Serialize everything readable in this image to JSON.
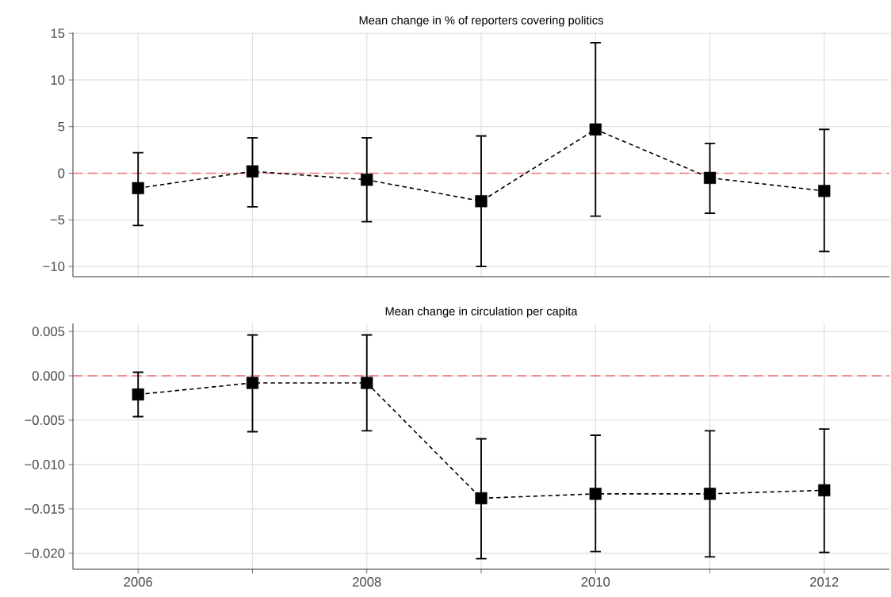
{
  "chart_data": [
    {
      "type": "line",
      "title": "Mean change in % of reporters covering politics",
      "x": [
        2006,
        2007,
        2008,
        2009,
        2010,
        2011,
        2012
      ],
      "values": [
        -1.6,
        0.2,
        -0.7,
        -3.0,
        4.7,
        -0.5,
        -1.9
      ],
      "errors": [
        [
          -5.6,
          2.2
        ],
        [
          -3.6,
          3.8
        ],
        [
          -5.2,
          3.8
        ],
        [
          -10.0,
          4.0
        ],
        [
          -4.6,
          14.0
        ],
        [
          -4.3,
          3.2
        ],
        [
          -8.4,
          4.7
        ]
      ],
      "color": "#000000",
      "marker": "square",
      "line_style": "dashed",
      "grid": true,
      "tick_labels": "y",
      "xlim": [
        2005.43,
        2012.57
      ],
      "xticks": [
        2006,
        {
          "value": 2007,
          "label": null
        },
        2008,
        {
          "value": 2009,
          "label": null
        },
        2010,
        {
          "value": 2011,
          "label": null
        },
        2012
      ],
      "ylim": [
        -11.1,
        15.1
      ],
      "yticks": [
        {
          "value": -10,
          "label": "−10"
        },
        {
          "value": -5,
          "label": "−5"
        },
        0,
        5,
        10,
        15
      ],
      "ref_lines": [
        {
          "axis": "y",
          "value": 0,
          "color": "#f07070",
          "line_style": "dashed"
        }
      ]
    },
    {
      "type": "line",
      "title": "Mean change in circulation per capita",
      "x": [
        2006,
        2007,
        2008,
        2009,
        2010,
        2011,
        2012
      ],
      "values": [
        -0.0021,
        -0.0008,
        -0.0008,
        -0.0138,
        -0.0133,
        -0.0133,
        -0.0129
      ],
      "errors": [
        [
          -0.0046,
          0.0004
        ],
        [
          -0.0063,
          0.0046
        ],
        [
          -0.0062,
          0.0046
        ],
        [
          -0.0206,
          -0.0071
        ],
        [
          -0.0198,
          -0.0067
        ],
        [
          -0.0204,
          -0.0062
        ],
        [
          -0.0199,
          -0.006
        ]
      ],
      "color": "#000000",
      "marker": "square",
      "line_style": "dashed",
      "grid": true,
      "xlim": [
        2005.43,
        2012.57
      ],
      "xticks": [
        2006,
        {
          "value": 2007,
          "label": null
        },
        2008,
        {
          "value": 2009,
          "label": null
        },
        2010,
        {
          "value": 2011,
          "label": null
        },
        2012
      ],
      "ylim": [
        -0.0218,
        0.0059
      ],
      "yticks": [
        {
          "value": -0.02,
          "label": "−0.020"
        },
        {
          "value": -0.015,
          "label": "−0.015"
        },
        {
          "value": -0.01,
          "label": "−0.010"
        },
        {
          "value": -0.005,
          "label": "−0.005"
        },
        {
          "value": 0,
          "label": "0.000"
        },
        {
          "value": 0.005,
          "label": "0.005"
        }
      ],
      "ref_lines": [
        {
          "axis": "y",
          "value": 0,
          "color": "#f07070",
          "line_style": "dashed"
        }
      ]
    }
  ]
}
